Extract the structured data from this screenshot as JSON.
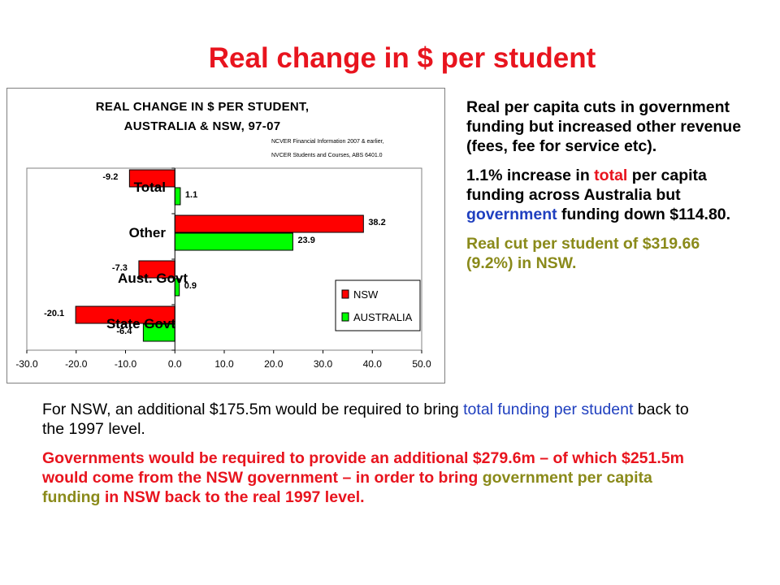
{
  "slide": {
    "title": "Real change in $ per student",
    "right_p1": "Real per capita cuts in government funding but increased other revenue (fees, fee for service etc).",
    "right_p2": {
      "a": "1.1% increase in ",
      "b": "total",
      "c": " per capita funding across Australia but ",
      "d": "government",
      "e": " funding down $114.80."
    },
    "right_p3": "Real cut per student of $319.66 (9.2%) in NSW.",
    "bottom_p1": {
      "a": "For NSW, an additional $175.5m would be required to bring ",
      "b": "total funding per student",
      "c": " back to the 1997 level."
    },
    "bottom_p2": {
      "a": "Governments would be required to provide an additional $279.6m – of which $251.5m would come from the NSW government – in order to bring ",
      "b": "government per capita funding",
      "c": " in NSW back to the real 1997 level."
    }
  },
  "chart_data": {
    "type": "bar",
    "orientation": "horizontal",
    "title_line1": "REAL CHANGE IN $ PER STUDENT,",
    "title_line2": "AUSTRALIA & NSW, 97-07",
    "source_line1": "NCVER Financial Information 2007 & earlier,",
    "source_line2": "NVCER Students and Courses, ABS 6401.0",
    "categories": [
      "Total",
      "Other",
      "Aust. Govt",
      "State Govt"
    ],
    "series": [
      {
        "name": "NSW",
        "color": "#ff0000",
        "values": [
          -9.2,
          38.2,
          -7.3,
          -20.1
        ]
      },
      {
        "name": "AUSTRALIA",
        "color": "#00ff00",
        "values": [
          1.1,
          23.9,
          0.9,
          -6.4
        ]
      }
    ],
    "data_labels": {
      "NSW": [
        "-9.2",
        "38.2",
        "-7.3",
        "-20.1"
      ],
      "AUSTRALIA": [
        "1.1",
        "23.9",
        "0.9",
        "-6.4"
      ]
    },
    "xlim": [
      -30,
      50
    ],
    "xticks": [
      "-30.0",
      "-20.0",
      "-10.0",
      "0.0",
      "10.0",
      "20.0",
      "30.0",
      "40.0",
      "50.0"
    ],
    "xtick_values": [
      -30,
      -20,
      -10,
      0,
      10,
      20,
      30,
      40,
      50
    ],
    "legend_position": "lower-right",
    "grid": false
  }
}
